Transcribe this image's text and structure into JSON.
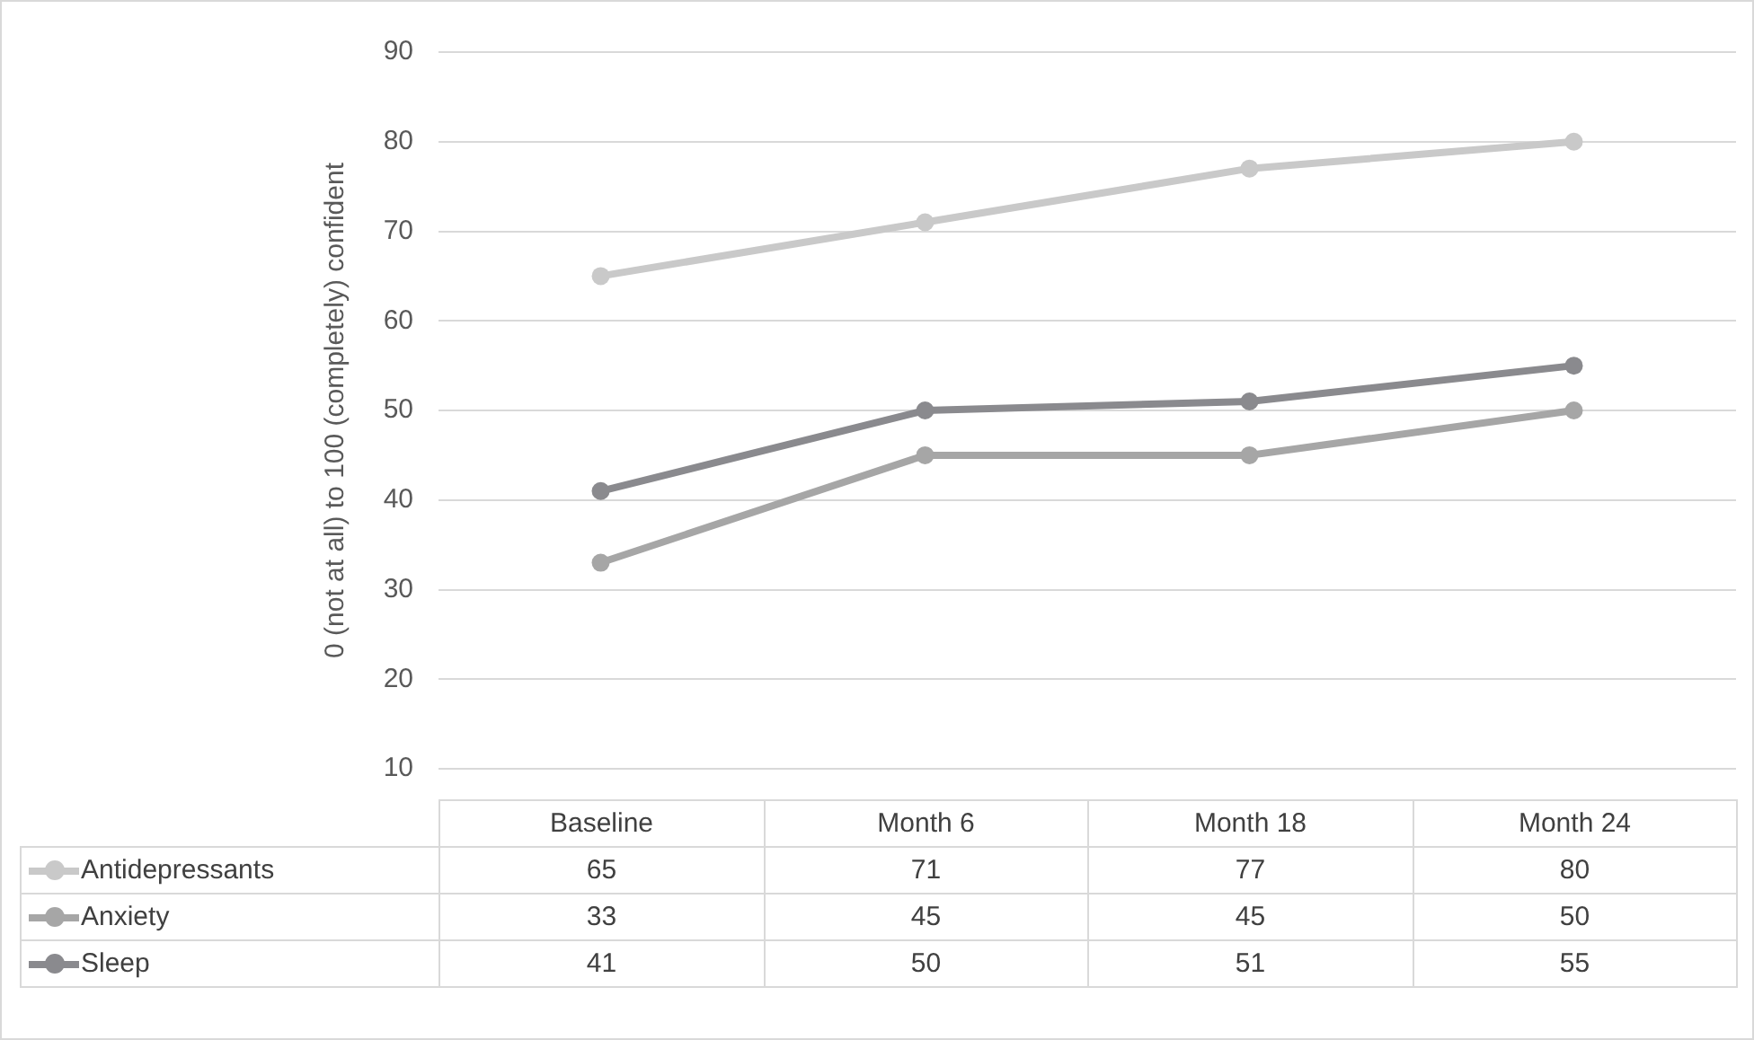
{
  "chart_data": {
    "type": "line",
    "ylabel": "0 (not at all) to 100 (completely) confident",
    "categories": [
      "Baseline",
      "Month 6",
      "Month 18",
      "Month 24"
    ],
    "series": [
      {
        "name": "Antidepressants",
        "color": "#c9c9c9",
        "values": [
          65,
          71,
          77,
          80
        ]
      },
      {
        "name": "Anxiety",
        "color": "#a6a6a6",
        "values": [
          33,
          45,
          45,
          50
        ]
      },
      {
        "name": "Sleep",
        "color": "#8a8a8e",
        "values": [
          41,
          50,
          51,
          55
        ]
      }
    ],
    "ylim": [
      10,
      90
    ],
    "yticks": [
      10,
      20,
      30,
      40,
      50,
      60,
      70,
      80,
      90
    ],
    "grid": "y",
    "marker": "circle",
    "line_style": "solid",
    "legend": "bottom left",
    "data_labels": true
  }
}
